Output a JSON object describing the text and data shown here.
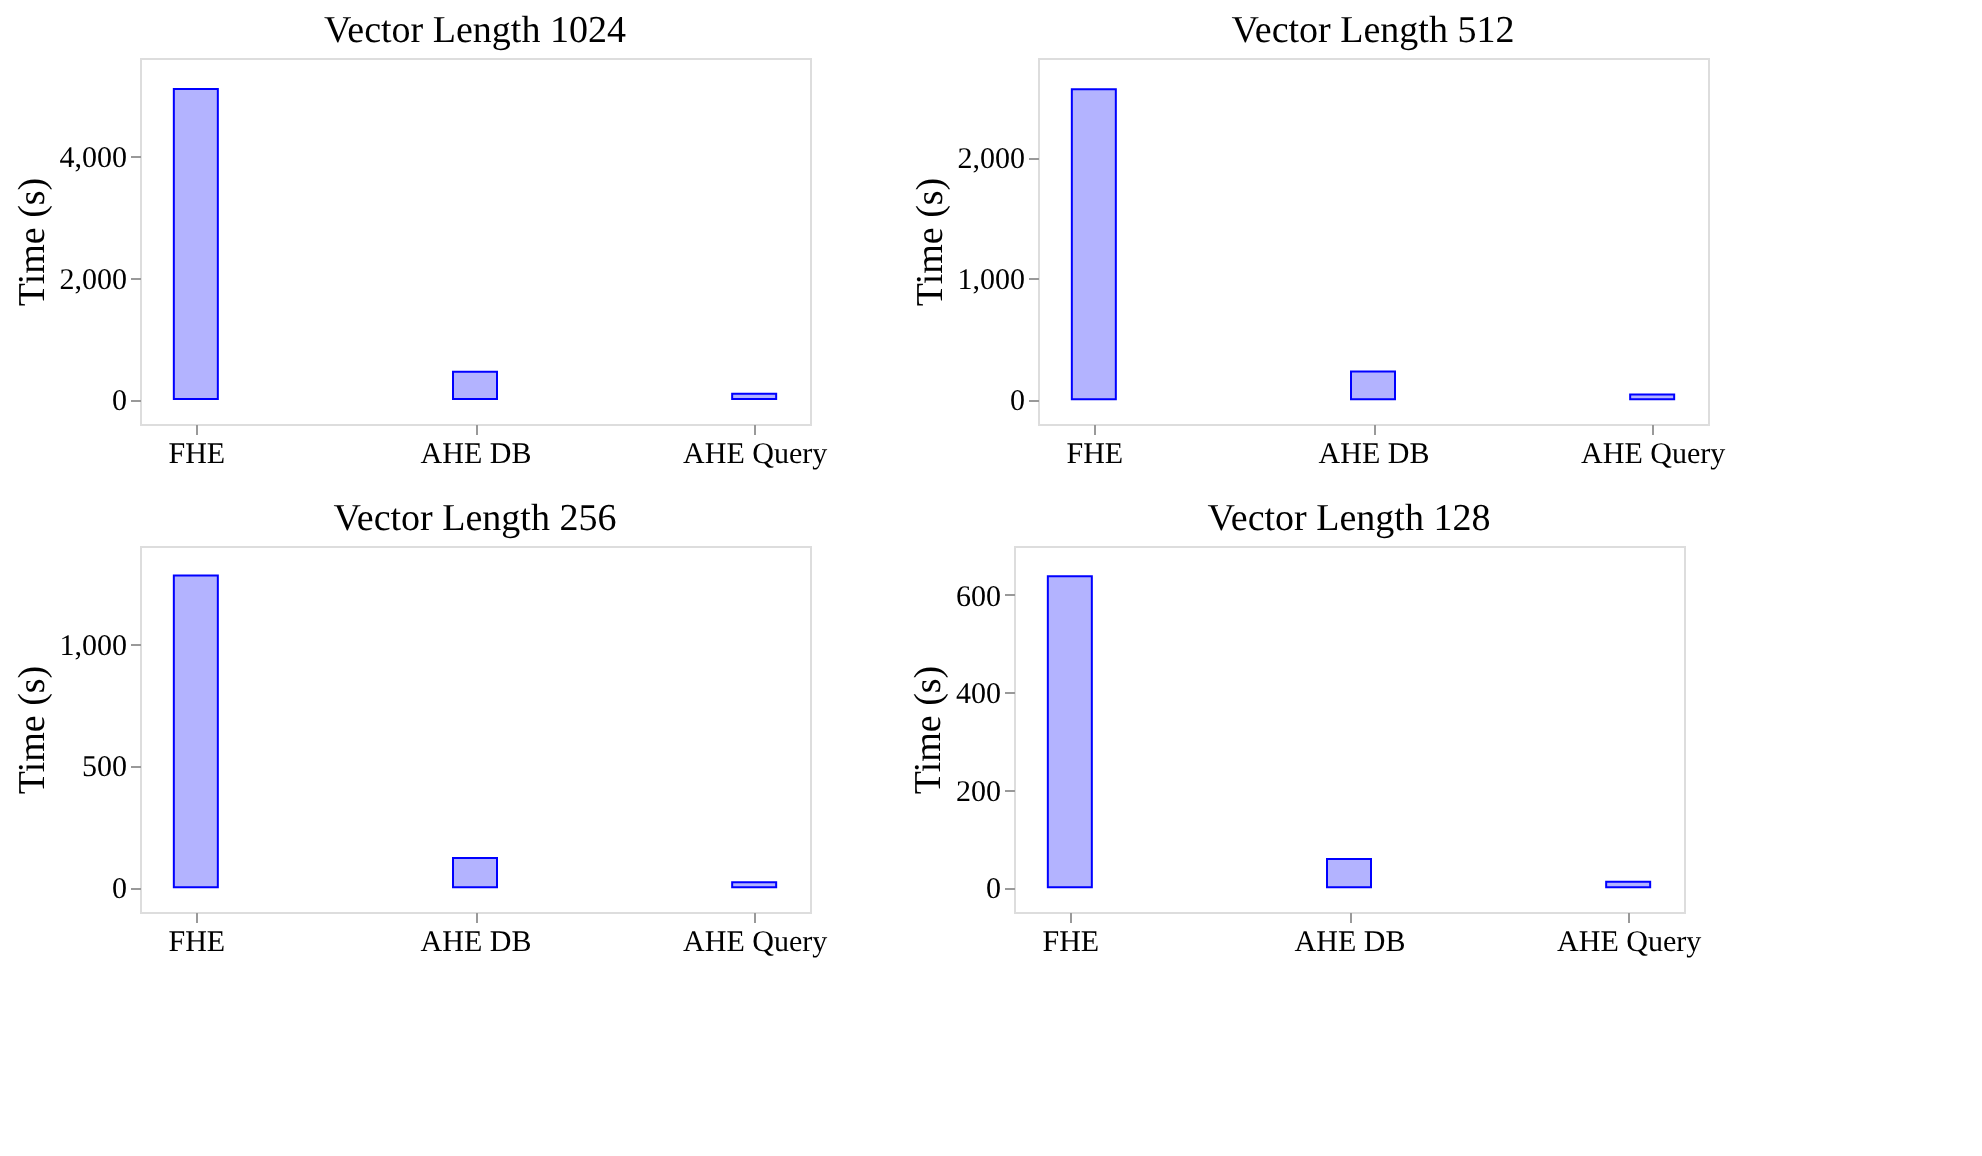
{
  "chart_data": [
    {
      "type": "bar",
      "title": "Vector Length 1024",
      "categories": [
        "FHE",
        "AHE DB",
        "AHE Query"
      ],
      "values": [
        5110,
        450,
        90
      ],
      "color": "#b3b3ff",
      "ylabel": "Time (s)",
      "ylim": [
        -410,
        5620
      ],
      "yticks": [
        0,
        {
          "value": 2000,
          "label": "2,000"
        },
        {
          "value": 4000,
          "label": "4,000"
        }
      ],
      "grid": false
    },
    {
      "type": "bar",
      "title": "Vector Length 512",
      "categories": [
        "FHE",
        "AHE DB",
        "AHE Query"
      ],
      "values": [
        2560,
        230,
        40
      ],
      "color": "#b3b3ff",
      "ylabel": "Time (s)",
      "ylim": [
        -204,
        2818
      ],
      "yticks": [
        0,
        {
          "value": 1000,
          "label": "1,000"
        },
        {
          "value": 2000,
          "label": "2,000"
        }
      ],
      "grid": false
    },
    {
      "type": "bar",
      "title": "Vector Length 256",
      "categories": [
        "FHE",
        "AHE DB",
        "AHE Query"
      ],
      "values": [
        1280,
        120,
        20
      ],
      "color": "#b3b3ff",
      "ylabel": "Time (s)",
      "ylim": [
        -102,
        1401
      ],
      "yticks": [
        0,
        500,
        {
          "value": 1000,
          "label": "1,000"
        }
      ],
      "grid": false
    },
    {
      "type": "bar",
      "title": "Vector Length 128",
      "categories": [
        "FHE",
        "AHE DB",
        "AHE Query"
      ],
      "values": [
        638,
        58,
        11
      ],
      "color": "#b3b3ff",
      "ylabel": "Time (s)",
      "ylim": [
        -51,
        700
      ],
      "yticks": [
        0,
        200,
        400,
        600
      ],
      "grid": false
    }
  ]
}
